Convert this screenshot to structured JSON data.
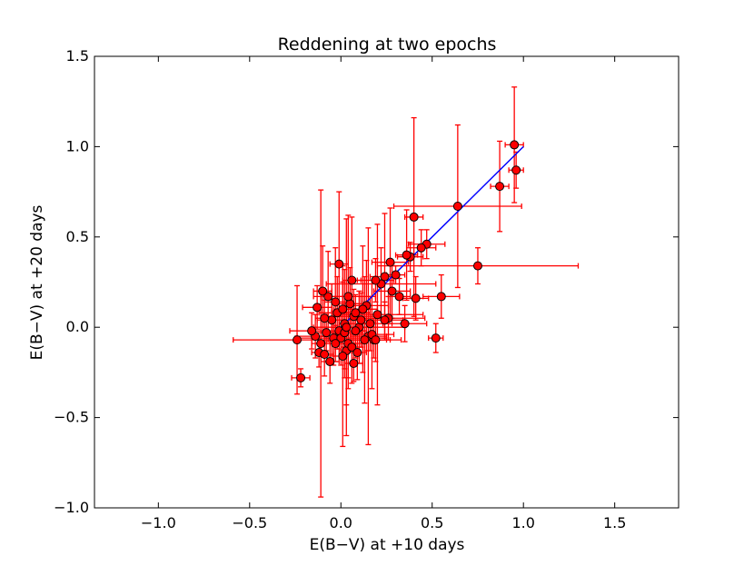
{
  "chart_data": {
    "type": "scatter",
    "title": "Reddening at two epochs",
    "xlabel": "E(B−V) at +10 days",
    "ylabel": "E(B−V) at +20 days",
    "xlim": [
      -1.35,
      1.85
    ],
    "ylim": [
      -1.0,
      1.5
    ],
    "xticks": [
      -1.0,
      -0.5,
      0.0,
      0.5,
      1.0,
      1.5
    ],
    "xtick_labels": [
      "−1.0",
      "−0.5",
      "0.0",
      "0.5",
      "1.0",
      "1.5"
    ],
    "yticks": [
      -1.0,
      -0.5,
      0.0,
      0.5,
      1.0,
      1.5
    ],
    "ytick_labels": [
      "−1.0",
      "−0.5",
      "0.0",
      "0.5",
      "1.0",
      "1.5"
    ],
    "grid": false,
    "colors": {
      "marker_fill": "#ff0000",
      "marker_edge": "#000000",
      "errorbar": "#ff0000",
      "fit_line": "#0000ff"
    },
    "fit_line": {
      "x": [
        0.0,
        1.0
      ],
      "y": [
        0.0,
        1.0
      ]
    },
    "points": [
      {
        "x": 0.95,
        "y": 1.01,
        "xerr": 0.05,
        "yerr": 0.32
      },
      {
        "x": 0.96,
        "y": 0.87,
        "xerr": 0.04,
        "yerr": 0.1
      },
      {
        "x": 0.87,
        "y": 0.78,
        "xerr": 0.05,
        "yerr": 0.25
      },
      {
        "x": 0.64,
        "y": 0.67,
        "xerr": 0.35,
        "yerr": 0.45
      },
      {
        "x": 0.4,
        "y": 0.61,
        "xerr": 0.05,
        "yerr": 0.55
      },
      {
        "x": 0.75,
        "y": 0.34,
        "xerr": 0.55,
        "yerr": 0.1
      },
      {
        "x": 0.47,
        "y": 0.46,
        "xerr": 0.1,
        "yerr": 0.08
      },
      {
        "x": 0.44,
        "y": 0.44,
        "xerr": 0.08,
        "yerr": 0.1
      },
      {
        "x": 0.38,
        "y": 0.39,
        "xerr": 0.07,
        "yerr": 0.08
      },
      {
        "x": 0.36,
        "y": 0.4,
        "xerr": 0.06,
        "yerr": 0.25
      },
      {
        "x": 0.3,
        "y": 0.29,
        "xerr": 0.05,
        "yerr": 0.05
      },
      {
        "x": 0.27,
        "y": 0.36,
        "xerr": 0.1,
        "yerr": 0.3
      },
      {
        "x": 0.24,
        "y": 0.28,
        "xerr": 0.08,
        "yerr": 0.35
      },
      {
        "x": 0.22,
        "y": 0.24,
        "xerr": 0.3,
        "yerr": 0.2
      },
      {
        "x": 0.19,
        "y": 0.26,
        "xerr": 0.1,
        "yerr": 0.12
      },
      {
        "x": 0.28,
        "y": 0.2,
        "xerr": 0.1,
        "yerr": 0.15
      },
      {
        "x": 0.32,
        "y": 0.17,
        "xerr": 0.06,
        "yerr": 0.1
      },
      {
        "x": 0.41,
        "y": 0.16,
        "xerr": 0.07,
        "yerr": 0.12
      },
      {
        "x": 0.55,
        "y": 0.17,
        "xerr": 0.1,
        "yerr": 0.12
      },
      {
        "x": 0.52,
        "y": -0.06,
        "xerr": 0.04,
        "yerr": 0.08
      },
      {
        "x": 0.35,
        "y": 0.02,
        "xerr": 0.12,
        "yerr": 0.1
      },
      {
        "x": 0.26,
        "y": 0.05,
        "xerr": 0.2,
        "yerr": 0.12
      },
      {
        "x": 0.2,
        "y": 0.07,
        "xerr": 0.25,
        "yerr": 0.5
      },
      {
        "x": 0.15,
        "y": -0.05,
        "xerr": 0.1,
        "yerr": 0.6
      },
      {
        "x": 0.18,
        "y": -0.07,
        "xerr": 0.15,
        "yerr": 0.1
      },
      {
        "x": 0.17,
        "y": -0.04,
        "xerr": 0.12,
        "yerr": 0.3
      },
      {
        "x": 0.14,
        "y": 0.12,
        "xerr": 0.12,
        "yerr": 0.25
      },
      {
        "x": 0.12,
        "y": 0.1,
        "xerr": 0.08,
        "yerr": 0.35
      },
      {
        "x": 0.1,
        "y": 0.0,
        "xerr": 0.25,
        "yerr": 0.2
      },
      {
        "x": 0.08,
        "y": -0.02,
        "xerr": 0.06,
        "yerr": 0.15
      },
      {
        "x": 0.07,
        "y": 0.06,
        "xerr": 0.15,
        "yerr": 0.15
      },
      {
        "x": 0.06,
        "y": 0.26,
        "xerr": 0.05,
        "yerr": 0.35
      },
      {
        "x": 0.05,
        "y": 0.13,
        "xerr": 0.07,
        "yerr": 0.2
      },
      {
        "x": 0.04,
        "y": 0.17,
        "xerr": 0.15,
        "yerr": 0.45
      },
      {
        "x": 0.03,
        "y": -0.13,
        "xerr": 0.04,
        "yerr": 0.3
      },
      {
        "x": 0.02,
        "y": 0.02,
        "xerr": 0.03,
        "yerr": 0.3
      },
      {
        "x": 0.01,
        "y": -0.16,
        "xerr": 0.02,
        "yerr": 0.5
      },
      {
        "x": -0.01,
        "y": -0.02,
        "xerr": 0.04,
        "yerr": 0.1
      },
      {
        "x": -0.01,
        "y": 0.35,
        "xerr": 0.05,
        "yerr": 0.4
      },
      {
        "x": -0.03,
        "y": 0.14,
        "xerr": 0.06,
        "yerr": 0.3
      },
      {
        "x": -0.04,
        "y": -0.06,
        "xerr": 0.05,
        "yerr": 0.15
      },
      {
        "x": -0.05,
        "y": 0.04,
        "xerr": 0.08,
        "yerr": 0.2
      },
      {
        "x": -0.06,
        "y": -0.19,
        "xerr": 0.05,
        "yerr": 0.12
      },
      {
        "x": -0.07,
        "y": 0.17,
        "xerr": 0.08,
        "yerr": 0.25
      },
      {
        "x": -0.08,
        "y": -0.03,
        "xerr": 0.06,
        "yerr": 0.1
      },
      {
        "x": -0.09,
        "y": 0.05,
        "xerr": 0.05,
        "yerr": 0.1
      },
      {
        "x": -0.1,
        "y": 0.2,
        "xerr": 0.05,
        "yerr": 0.25
      },
      {
        "x": -0.11,
        "y": -0.09,
        "xerr": 0.05,
        "yerr": 0.85
      },
      {
        "x": -0.12,
        "y": -0.14,
        "xerr": 0.04,
        "yerr": 0.08
      },
      {
        "x": -0.13,
        "y": 0.11,
        "xerr": 0.08,
        "yerr": 0.12
      },
      {
        "x": -0.14,
        "y": -0.05,
        "xerr": 0.1,
        "yerr": 0.12
      },
      {
        "x": -0.16,
        "y": -0.02,
        "xerr": 0.12,
        "yerr": 0.1
      },
      {
        "x": -0.22,
        "y": -0.28,
        "xerr": 0.05,
        "yerr": 0.05
      },
      {
        "x": -0.24,
        "y": -0.07,
        "xerr": 0.35,
        "yerr": 0.3
      },
      {
        "x": 0.0,
        "y": -0.06,
        "xerr": 0.25,
        "yerr": 0.15
      },
      {
        "x": 0.02,
        "y": -0.03,
        "xerr": 0.1,
        "yerr": 0.2
      },
      {
        "x": 0.04,
        "y": -0.09,
        "xerr": 0.08,
        "yerr": 0.25
      },
      {
        "x": 0.06,
        "y": -0.11,
        "xerr": 0.06,
        "yerr": 0.2
      },
      {
        "x": 0.09,
        "y": -0.14,
        "xerr": 0.05,
        "yerr": 0.15
      },
      {
        "x": 0.11,
        "y": 0.04,
        "xerr": 0.07,
        "yerr": 0.15
      },
      {
        "x": 0.13,
        "y": -0.07,
        "xerr": 0.12,
        "yerr": 0.35
      },
      {
        "x": 0.16,
        "y": 0.02,
        "xerr": 0.12,
        "yerr": 0.15
      },
      {
        "x": -0.02,
        "y": 0.08,
        "xerr": 0.1,
        "yerr": 0.2
      },
      {
        "x": 0.01,
        "y": 0.1,
        "xerr": 0.05,
        "yerr": 0.15
      },
      {
        "x": 0.07,
        "y": -0.2,
        "xerr": 0.05,
        "yerr": 0.1
      },
      {
        "x": -0.09,
        "y": -0.15,
        "xerr": 0.05,
        "yerr": 0.12
      },
      {
        "x": 0.03,
        "y": 0.0,
        "xerr": 0.08,
        "yerr": 0.6
      },
      {
        "x": -0.03,
        "y": -0.09,
        "xerr": 0.06,
        "yerr": 0.1
      },
      {
        "x": 0.08,
        "y": 0.08,
        "xerr": 0.08,
        "yerr": 0.1
      },
      {
        "x": 0.19,
        "y": -0.07,
        "xerr": 0.08,
        "yerr": 0.12
      },
      {
        "x": 0.24,
        "y": 0.04,
        "xerr": 0.1,
        "yerr": 0.1
      }
    ]
  }
}
